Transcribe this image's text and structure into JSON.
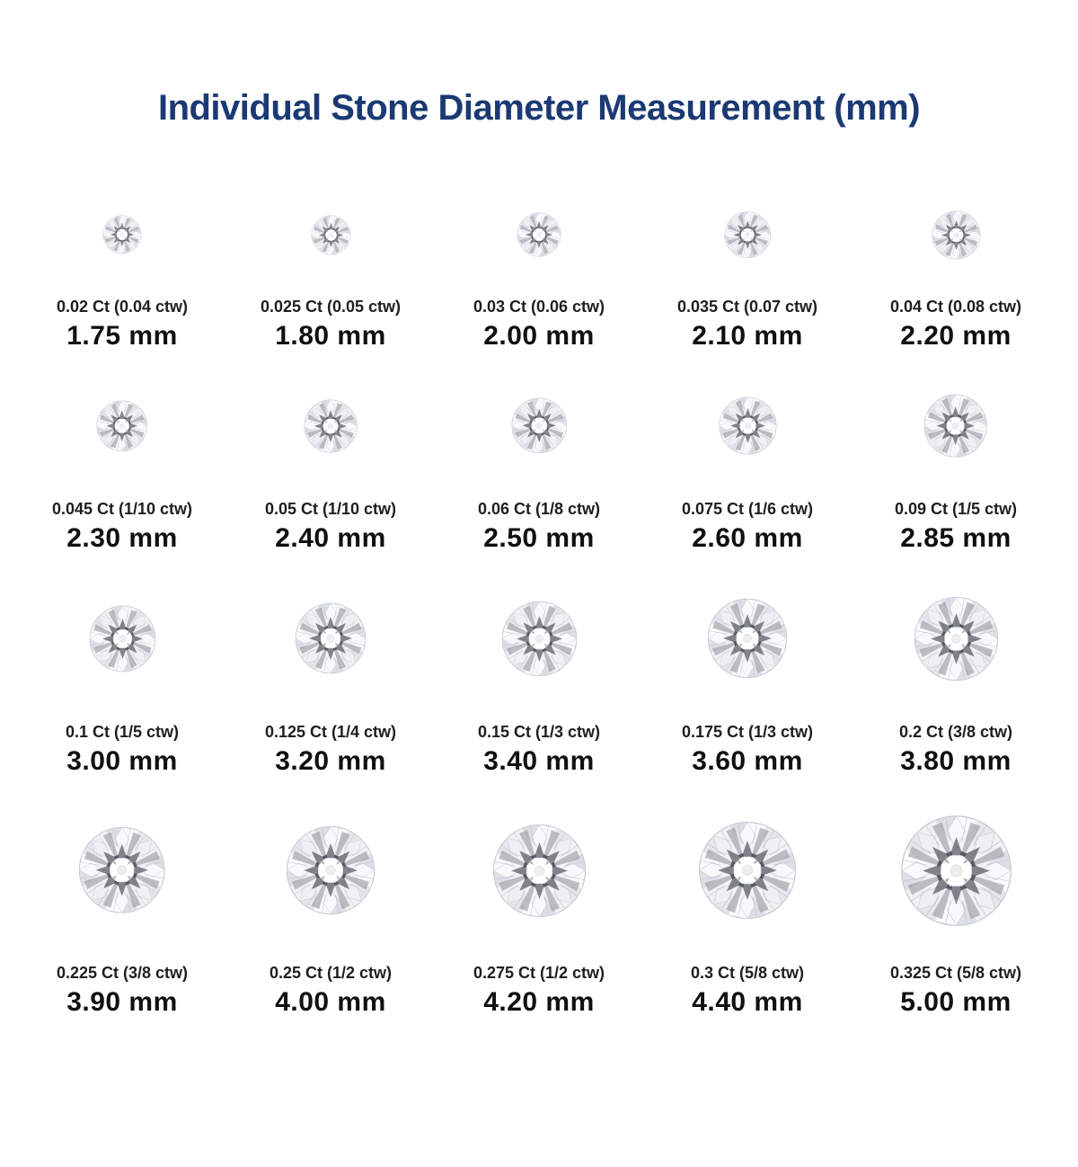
{
  "title": "Individual Stone Diameter Measurement (mm)",
  "title_color": "#1b3a73",
  "icons": {
    "stone": "diamond-icon"
  },
  "grid": {
    "rows": [
      {
        "cells": [
          {
            "carat": "0.02 Ct (0.04 ctw)",
            "mm_label": "1.75 mm",
            "mm": 1.75
          },
          {
            "carat": "0.025 Ct (0.05 ctw)",
            "mm_label": "1.80 mm",
            "mm": 1.8
          },
          {
            "carat": "0.03 Ct (0.06 ctw)",
            "mm_label": "2.00 mm",
            "mm": 2.0
          },
          {
            "carat": "0.035 Ct (0.07 ctw)",
            "mm_label": "2.10 mm",
            "mm": 2.1
          },
          {
            "carat": "0.04 Ct (0.08 ctw)",
            "mm_label": "2.20 mm",
            "mm": 2.2
          }
        ]
      },
      {
        "cells": [
          {
            "carat": "0.045 Ct (1/10 ctw)",
            "mm_label": "2.30 mm",
            "mm": 2.3
          },
          {
            "carat": "0.05 Ct (1/10 ctw)",
            "mm_label": "2.40 mm",
            "mm": 2.4
          },
          {
            "carat": "0.06 Ct (1/8 ctw)",
            "mm_label": "2.50 mm",
            "mm": 2.5
          },
          {
            "carat": "0.075 Ct (1/6 ctw)",
            "mm_label": "2.60 mm",
            "mm": 2.6
          },
          {
            "carat": "0.09 Ct (1/5 ctw)",
            "mm_label": "2.85 mm",
            "mm": 2.85
          }
        ]
      },
      {
        "cells": [
          {
            "carat": "0.1 Ct (1/5 ctw)",
            "mm_label": "3.00 mm",
            "mm": 3.0
          },
          {
            "carat": "0.125 Ct (1/4 ctw)",
            "mm_label": "3.20 mm",
            "mm": 3.2
          },
          {
            "carat": "0.15 Ct (1/3 ctw)",
            "mm_label": "3.40 mm",
            "mm": 3.4
          },
          {
            "carat": "0.175 Ct (1/3 ctw)",
            "mm_label": "3.60 mm",
            "mm": 3.6
          },
          {
            "carat": "0.2 Ct (3/8 ctw)",
            "mm_label": "3.80 mm",
            "mm": 3.8
          }
        ]
      },
      {
        "cells": [
          {
            "carat": "0.225 Ct (3/8 ctw)",
            "mm_label": "3.90 mm",
            "mm": 3.9
          },
          {
            "carat": "0.25 Ct (1/2 ctw)",
            "mm_label": "4.00 mm",
            "mm": 4.0
          },
          {
            "carat": "0.275 Ct (1/2 ctw)",
            "mm_label": "4.20 mm",
            "mm": 4.2
          },
          {
            "carat": "0.3 Ct (5/8 ctw)",
            "mm_label": "4.40 mm",
            "mm": 4.4
          },
          {
            "carat": "0.325 Ct (5/8 ctw)",
            "mm_label": "5.00 mm",
            "mm": 5.0
          }
        ]
      }
    ]
  },
  "chart_data": {
    "type": "table",
    "title": "Individual Stone Diameter Measurement (mm)",
    "columns": [
      "carat_label",
      "diameter_mm"
    ],
    "rows": [
      [
        "0.02 Ct (0.04 ctw)",
        1.75
      ],
      [
        "0.025 Ct (0.05 ctw)",
        1.8
      ],
      [
        "0.03 Ct (0.06 ctw)",
        2.0
      ],
      [
        "0.035 Ct (0.07 ctw)",
        2.1
      ],
      [
        "0.04 Ct (0.08 ctw)",
        2.2
      ],
      [
        "0.045 Ct (1/10 ctw)",
        2.3
      ],
      [
        "0.05 Ct (1/10 ctw)",
        2.4
      ],
      [
        "0.06 Ct (1/8 ctw)",
        2.5
      ],
      [
        "0.075 Ct (1/6 ctw)",
        2.6
      ],
      [
        "0.09 Ct (1/5 ctw)",
        2.85
      ],
      [
        "0.1 Ct (1/5 ctw)",
        3.0
      ],
      [
        "0.125 Ct (1/4 ctw)",
        3.2
      ],
      [
        "0.15 Ct (1/3 ctw)",
        3.4
      ],
      [
        "0.175 Ct (1/3 ctw)",
        3.6
      ],
      [
        "0.2 Ct (3/8 ctw)",
        3.8
      ],
      [
        "0.225 Ct (3/8 ctw)",
        3.9
      ],
      [
        "0.25 Ct (1/2 ctw)",
        4.0
      ],
      [
        "0.275 Ct (1/2 ctw)",
        4.2
      ],
      [
        "0.3 Ct (5/8 ctw)",
        4.4
      ],
      [
        "0.325 Ct (5/8 ctw)",
        5.0
      ]
    ]
  }
}
